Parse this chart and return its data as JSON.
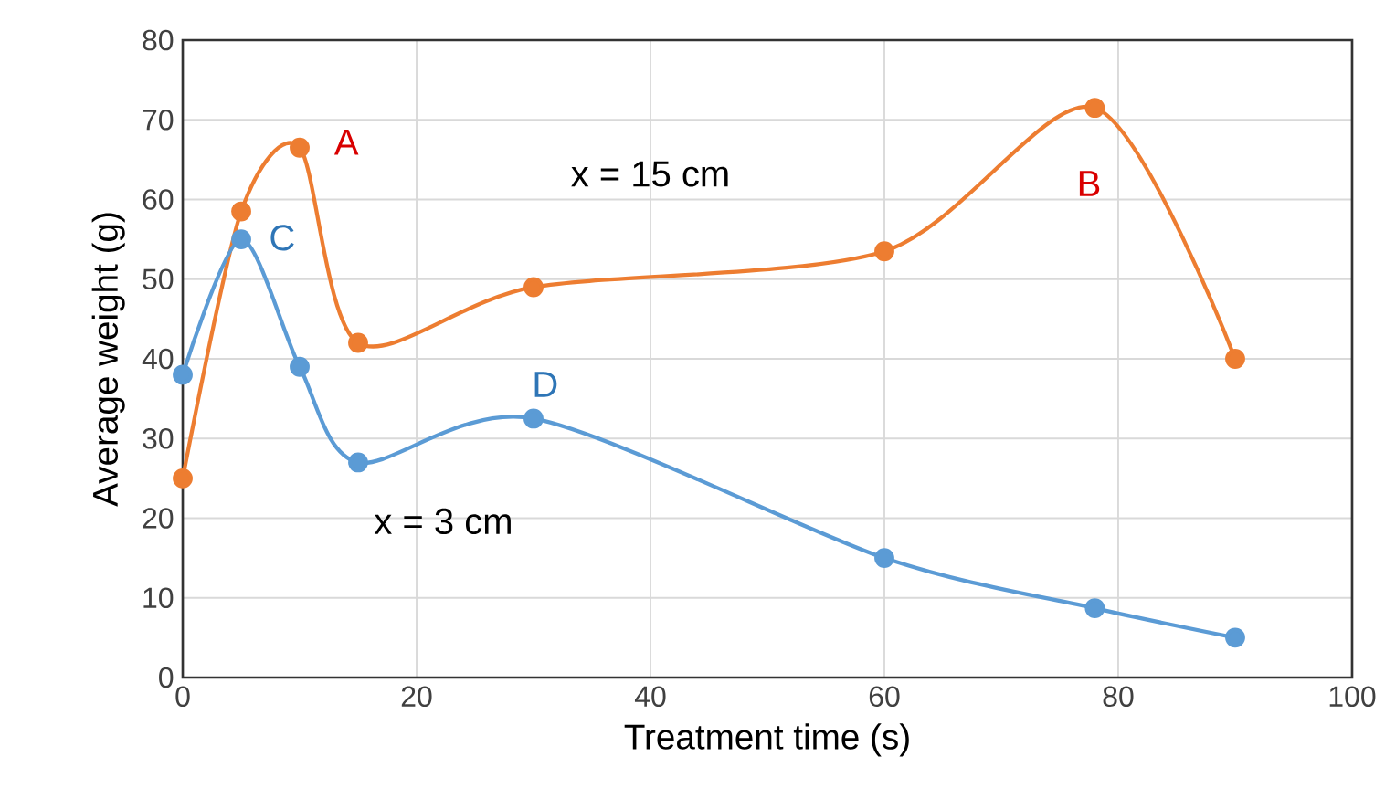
{
  "chart_data": {
    "type": "line",
    "xlabel": "Treatment time (s)",
    "ylabel": "Average weight (g)",
    "series": [
      {
        "color": "#ed7d31",
        "x": [
          0,
          5,
          10,
          15,
          30,
          60,
          78,
          90
        ],
        "values": [
          25,
          58.5,
          66.5,
          42,
          49,
          53.5,
          71.5,
          40
        ]
      },
      {
        "color": "#5b9bd5",
        "x": [
          0,
          5,
          10,
          15,
          30,
          60,
          78,
          90
        ],
        "values": [
          38,
          55,
          39,
          27,
          32.5,
          15,
          8.7,
          5
        ]
      }
    ],
    "annotations": [
      "A",
      "B",
      "C",
      "D",
      "x = 15 cm",
      "x = 3 cm"
    ],
    "xlim": [
      0,
      100
    ],
    "xticks": [
      0,
      20,
      40,
      60,
      80,
      100
    ],
    "ylim": [
      0,
      80
    ],
    "yticks": [
      0,
      10,
      20,
      30,
      40,
      50,
      60,
      70,
      80
    ],
    "grid": true,
    "marker": "circle",
    "line_style": "solid"
  }
}
